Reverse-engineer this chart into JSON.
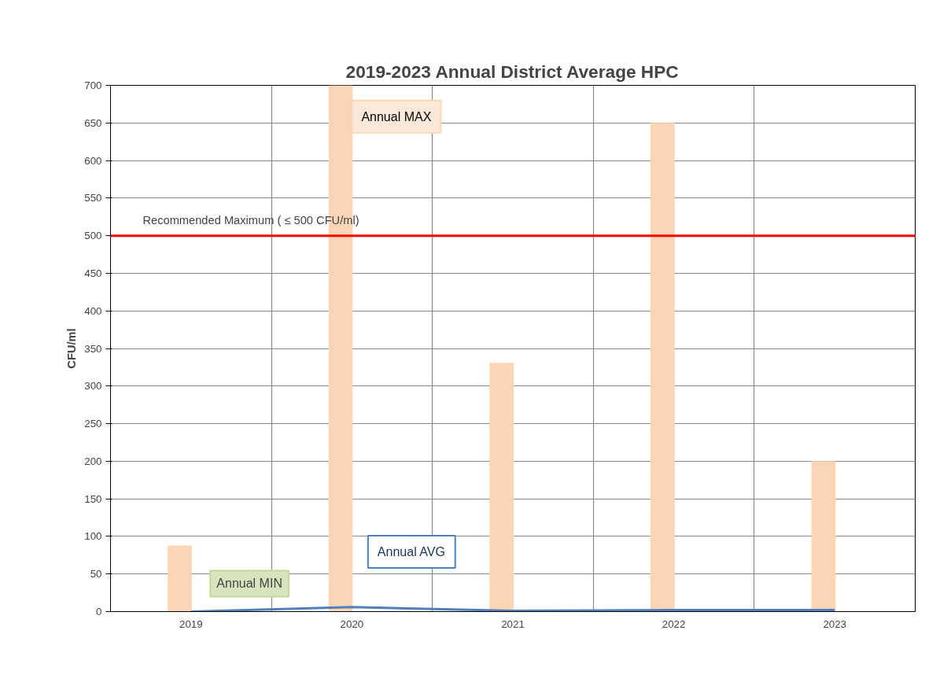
{
  "chart_data": {
    "type": "bar",
    "title": "2019-2023 Annual District Average HPC",
    "ylabel": "CFU/ml",
    "categories": [
      "2019",
      "2020",
      "2021",
      "2022",
      "2023"
    ],
    "series": [
      {
        "name": "Annual MAX",
        "color": "#fbd5b5",
        "values": [
          88,
          700,
          331,
          650,
          200
        ]
      },
      {
        "name": "Annual AVG",
        "type": "line",
        "color": "#4f81bd",
        "values": [
          0,
          6,
          1,
          2,
          2
        ]
      }
    ],
    "ylim": [
      0,
      700
    ],
    "yticks": [
      0,
      50,
      100,
      150,
      200,
      250,
      300,
      350,
      400,
      450,
      500,
      550,
      600,
      650,
      700
    ],
    "ref_lines": [
      {
        "axis": "y",
        "value": 500,
        "label": "Recommended Maximum  ( ≤ 500 CFU/ml)",
        "color": "#ff0000"
      }
    ],
    "annotations": [
      "Annual MIN"
    ],
    "grid": true
  }
}
